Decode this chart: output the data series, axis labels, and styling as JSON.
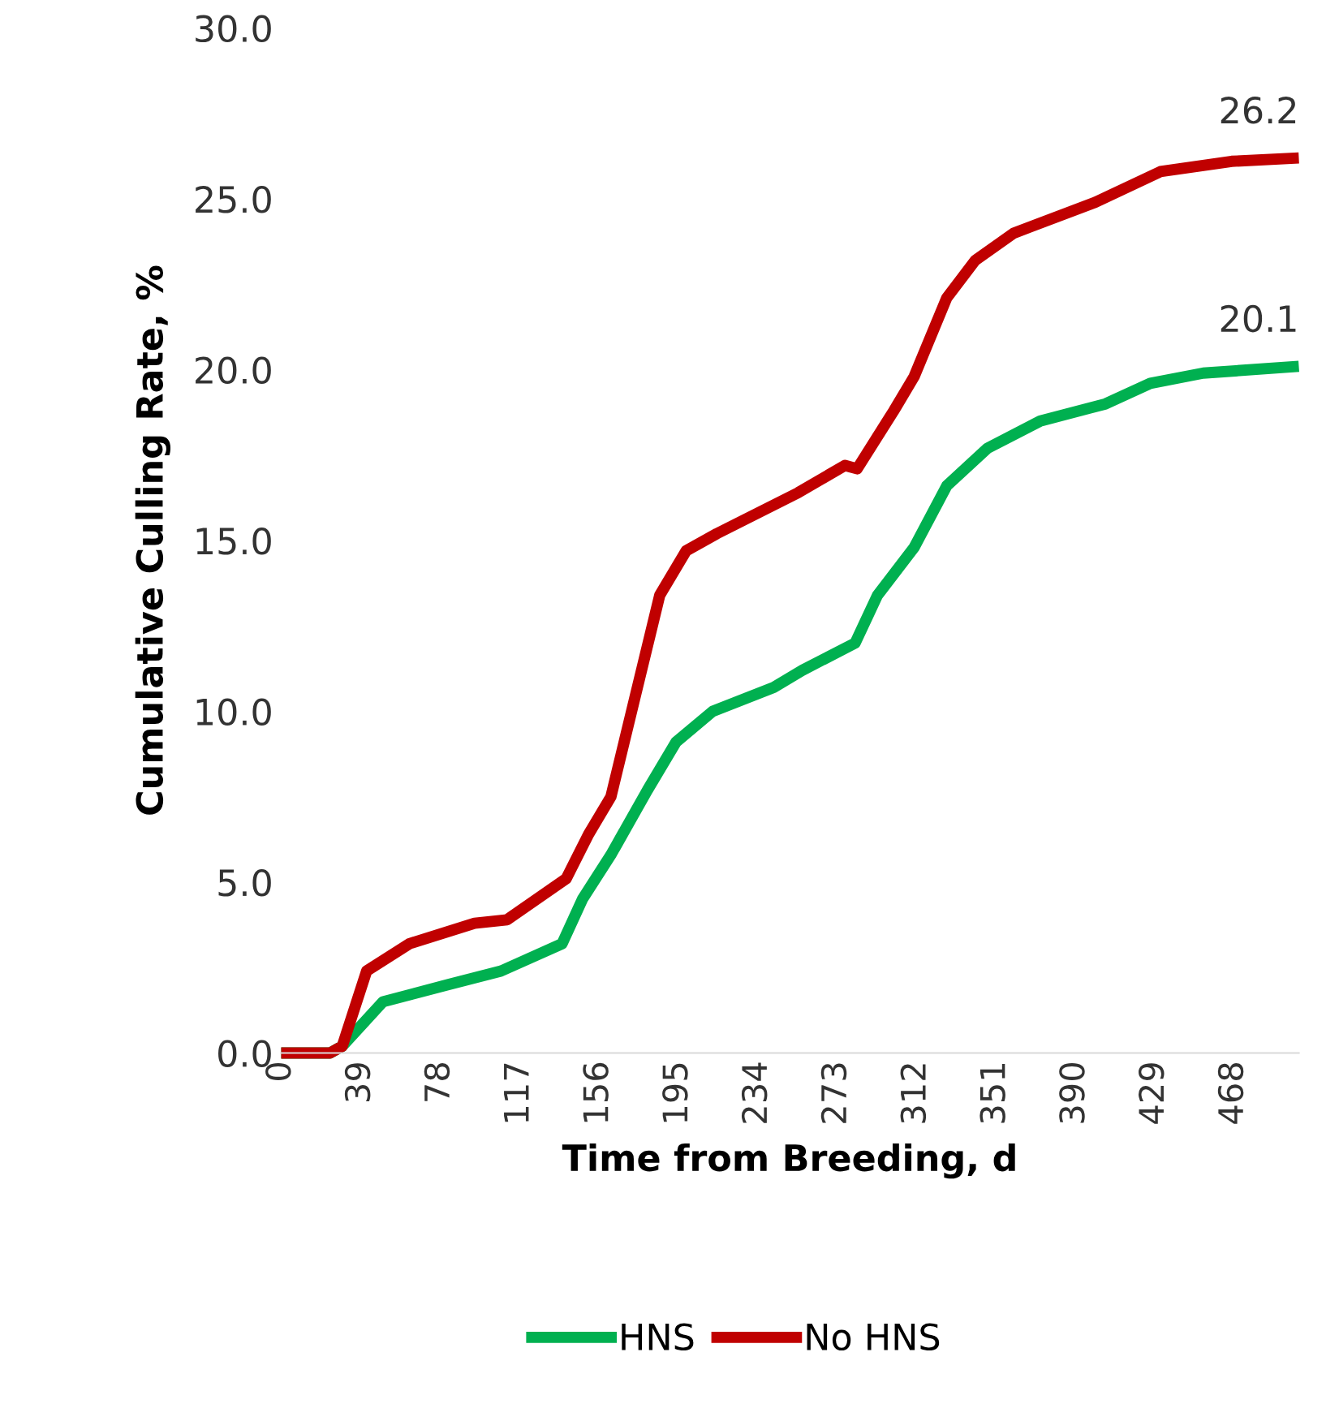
{
  "chart_data": {
    "type": "line",
    "xlabel": "Time from Breeding, d",
    "ylabel": "Cumulative Culling Rate, %",
    "xlim": [
      0,
      500
    ],
    "xticks": [
      0,
      39,
      78,
      117,
      156,
      195,
      234,
      273,
      312,
      351,
      390,
      429,
      468
    ],
    "ylim": [
      0,
      30
    ],
    "yticks": [
      {
        "value": 0,
        "label": "0.0"
      },
      {
        "value": 5,
        "label": "5.0"
      },
      {
        "value": 10,
        "label": "10.0"
      },
      {
        "value": 15,
        "label": "15.0"
      },
      {
        "value": 20,
        "label": "20.0"
      },
      {
        "value": 25,
        "label": "25.0"
      },
      {
        "value": 30,
        "label": "30.0"
      }
    ],
    "grid": false,
    "legend": "bottom",
    "marker": "none",
    "line_style": "solid",
    "series": [
      {
        "name": "HNS",
        "color": "#00b050",
        "x": [
          0,
          24,
          30,
          50,
          82,
          108,
          138,
          148,
          162,
          180,
          194,
          212,
          242,
          256,
          282,
          293,
          311,
          327,
          347,
          373,
          405,
          427,
          453,
          500
        ],
        "values": [
          0,
          0,
          0.2,
          1.5,
          2.0,
          2.4,
          3.2,
          4.5,
          5.8,
          7.7,
          9.1,
          10.0,
          10.7,
          11.2,
          12.0,
          13.4,
          14.8,
          16.6,
          17.7,
          18.5,
          19.0,
          19.6,
          19.9,
          20.1
        ]
      },
      {
        "name": "No HNS",
        "color": "#c00000",
        "x": [
          0,
          24,
          30,
          42,
          63,
          95,
          111,
          140,
          151,
          162,
          175,
          186,
          199,
          214,
          254,
          277,
          283,
          301,
          311,
          327,
          341,
          360,
          400,
          432,
          467,
          500
        ],
        "values": [
          0,
          0,
          0.2,
          2.4,
          3.2,
          3.8,
          3.9,
          5.1,
          6.4,
          7.5,
          10.7,
          13.4,
          14.7,
          15.2,
          16.4,
          17.2,
          17.1,
          18.8,
          19.8,
          22.1,
          23.2,
          24.0,
          24.9,
          25.8,
          26.1,
          26.2
        ]
      }
    ],
    "annotations": [
      {
        "text": "26.2",
        "x": 500,
        "y": 26.2
      },
      {
        "text": "20.1",
        "x": 500,
        "y": 20.1
      }
    ]
  }
}
